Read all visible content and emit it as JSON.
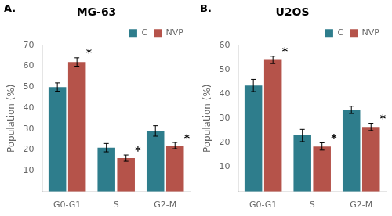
{
  "chart_data": [
    {
      "type": "bar",
      "title": "MG-63",
      "categories": [
        "G0-G1",
        "S",
        "G2-M"
      ],
      "series": [
        {
          "name": "C",
          "color": "#2e7d8c",
          "values": [
            50,
            21,
            29
          ],
          "errors": [
            2.0,
            2.0,
            2.5
          ]
        },
        {
          "name": "NVP",
          "color": "#b5534a",
          "values": [
            62,
            16,
            22
          ],
          "errors": [
            2.0,
            1.5,
            1.5
          ]
        }
      ],
      "annotations": [
        {
          "text": "A."
        },
        {
          "text": "*",
          "series": "NVP",
          "category": "G0-G1"
        },
        {
          "text": "*",
          "series": "NVP",
          "category": "S"
        },
        {
          "text": "*",
          "series": "NVP",
          "category": "G2-M"
        }
      ],
      "ylabel": "Population (%)",
      "ylim": [
        0,
        70
      ],
      "yticks": [
        10,
        20,
        30,
        40,
        50,
        60,
        70
      ],
      "grid": false,
      "legend": "upper right"
    },
    {
      "type": "bar",
      "title": "U2OS",
      "categories": [
        "G0-G1",
        "S",
        "G2-M"
      ],
      "series": [
        {
          "name": "C",
          "color": "#2e7d8c",
          "values": [
            43.5,
            23,
            33.5
          ],
          "errors": [
            2.5,
            2.5,
            1.5
          ]
        },
        {
          "name": "NVP",
          "color": "#b5534a",
          "values": [
            54,
            18.5,
            26.5
          ],
          "errors": [
            1.5,
            1.5,
            1.5
          ]
        }
      ],
      "annotations": [
        {
          "text": "B."
        },
        {
          "text": "*",
          "series": "NVP",
          "category": "G0-G1"
        },
        {
          "text": "*",
          "series": "NVP",
          "category": "S"
        },
        {
          "text": "*",
          "series": "NVP",
          "category": "G2-M"
        }
      ],
      "ylabel": "Population (%)",
      "ylim": [
        0,
        60
      ],
      "yticks": [
        10,
        20,
        30,
        40,
        50,
        60
      ],
      "grid": false,
      "legend": "upper right"
    }
  ]
}
